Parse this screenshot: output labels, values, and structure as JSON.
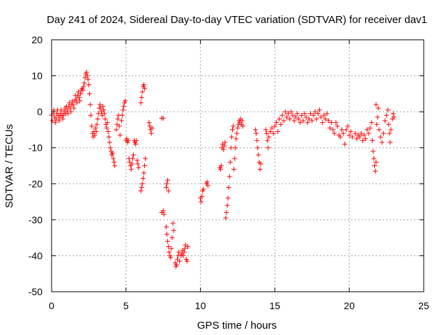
{
  "chart_data": {
    "type": "scatter",
    "title": "Day 241 of 2024, Sidereal Day-to-day VTEC variation (SDTVAR) for receiver dav1",
    "xlabel": "GPS time / hours",
    "ylabel": "SDTVAR / TECUs",
    "xlim": [
      0,
      25
    ],
    "ylim": [
      -50,
      20
    ],
    "xticks": [
      "0",
      "5",
      "10",
      "15",
      "20",
      "25"
    ],
    "yticks": [
      "20",
      "10",
      "0",
      "-10",
      "-20",
      "-30",
      "-40",
      "-50"
    ],
    "grid": true,
    "marker": "plus",
    "color": "#ff0000",
    "series": [
      {
        "name": "dav1",
        "points": [
          [
            0.0,
            -1.0
          ],
          [
            0.05,
            -2.5
          ],
          [
            0.1,
            -0.5
          ],
          [
            0.15,
            0.5
          ],
          [
            0.2,
            -1.5
          ],
          [
            0.25,
            -3.0
          ],
          [
            0.3,
            -2.0
          ],
          [
            0.35,
            -0.5
          ],
          [
            0.4,
            0.5
          ],
          [
            0.45,
            -1.0
          ],
          [
            0.5,
            -2.5
          ],
          [
            0.55,
            -1.5
          ],
          [
            0.6,
            -0.5
          ],
          [
            0.65,
            0.5
          ],
          [
            0.7,
            -1.0
          ],
          [
            0.75,
            -2.0
          ],
          [
            0.8,
            -1.0
          ],
          [
            0.85,
            0.0
          ],
          [
            0.9,
            1.0
          ],
          [
            0.95,
            -0.5
          ],
          [
            1.0,
            1.5
          ],
          [
            1.05,
            0.5
          ],
          [
            1.1,
            -0.5
          ],
          [
            1.15,
            1.5
          ],
          [
            1.2,
            2.5
          ],
          [
            1.25,
            1.0
          ],
          [
            1.3,
            0.0
          ],
          [
            1.35,
            2.0
          ],
          [
            1.4,
            3.0
          ],
          [
            1.45,
            2.0
          ],
          [
            1.5,
            1.0
          ],
          [
            1.55,
            3.0
          ],
          [
            1.6,
            4.5
          ],
          [
            1.65,
            3.5
          ],
          [
            1.7,
            2.5
          ],
          [
            1.75,
            4.5
          ],
          [
            1.8,
            5.5
          ],
          [
            1.85,
            4.0
          ],
          [
            1.9,
            3.0
          ],
          [
            1.95,
            5.0
          ],
          [
            2.0,
            6.0
          ],
          [
            2.05,
            6.5
          ],
          [
            2.1,
            6.0
          ],
          [
            2.15,
            7.0
          ],
          [
            2.2,
            8.0
          ],
          [
            2.25,
            9.5
          ],
          [
            2.3,
            10.5
          ],
          [
            2.35,
            11.0
          ],
          [
            2.4,
            10.0
          ],
          [
            2.45,
            9.0
          ],
          [
            2.5,
            7.5
          ],
          [
            2.55,
            5.0
          ],
          [
            2.6,
            2.0
          ],
          [
            2.65,
            -1.0
          ],
          [
            2.7,
            -4.0
          ],
          [
            2.75,
            -6.0
          ],
          [
            2.8,
            -7.0
          ],
          [
            2.85,
            -5.5
          ],
          [
            2.9,
            -6.5
          ],
          [
            2.95,
            -4.5
          ],
          [
            3.0,
            -5.5
          ],
          [
            3.05,
            -3.5
          ],
          [
            3.1,
            -2.0
          ],
          [
            3.15,
            -0.5
          ],
          [
            3.2,
            1.0
          ],
          [
            3.25,
            2.0
          ],
          [
            3.3,
            1.0
          ],
          [
            3.35,
            0.0
          ],
          [
            3.4,
            -1.0
          ],
          [
            3.45,
            1.5
          ],
          [
            3.5,
            0.5
          ],
          [
            3.55,
            -0.5
          ],
          [
            3.6,
            -2.0
          ],
          [
            3.65,
            -3.5
          ],
          [
            3.7,
            -4.5
          ],
          [
            3.75,
            -3.0
          ],
          [
            3.8,
            -5.5
          ],
          [
            3.85,
            -7.0
          ],
          [
            3.9,
            -8.5
          ],
          [
            3.95,
            -10.0
          ],
          [
            4.0,
            -11.0
          ],
          [
            4.05,
            -12.0
          ],
          [
            4.1,
            -11.5
          ],
          [
            4.15,
            -13.0
          ],
          [
            4.2,
            -14.0
          ],
          [
            4.25,
            -15.0
          ],
          [
            4.35,
            -5.0
          ],
          [
            4.4,
            -3.5
          ],
          [
            4.45,
            -2.0
          ],
          [
            4.5,
            -1.0
          ],
          [
            4.55,
            -4.0
          ],
          [
            4.6,
            -6.5
          ],
          [
            4.7,
            -2.5
          ],
          [
            4.75,
            -1.0
          ],
          [
            4.8,
            0.5
          ],
          [
            4.85,
            1.5
          ],
          [
            4.9,
            2.5
          ],
          [
            4.95,
            3.0
          ],
          [
            5.0,
            -8.0
          ],
          [
            5.05,
            -7.5
          ],
          [
            5.1,
            -8.5
          ],
          [
            5.15,
            -8.0
          ],
          [
            5.2,
            -13.0
          ],
          [
            5.25,
            -14.0
          ],
          [
            5.3,
            -15.0
          ],
          [
            5.35,
            -16.0
          ],
          [
            5.4,
            -14.5
          ],
          [
            5.45,
            -13.0
          ],
          [
            5.5,
            -12.0
          ],
          [
            5.55,
            -8.0
          ],
          [
            5.6,
            -8.5
          ],
          [
            5.65,
            -9.0
          ],
          [
            5.7,
            -8.0
          ],
          [
            5.75,
            -13.5
          ],
          [
            5.8,
            -14.5
          ],
          [
            5.85,
            -15.5
          ],
          [
            6.0,
            2.5
          ],
          [
            6.05,
            4.0
          ],
          [
            6.1,
            5.5
          ],
          [
            6.15,
            7.0
          ],
          [
            6.2,
            7.5
          ],
          [
            6.25,
            6.5
          ],
          [
            6.0,
            -22.0
          ],
          [
            6.05,
            -21.0
          ],
          [
            6.1,
            -20.0
          ],
          [
            6.15,
            -18.5
          ],
          [
            6.2,
            -17.0
          ],
          [
            6.25,
            -15.0
          ],
          [
            6.3,
            -13.0
          ],
          [
            6.55,
            -3.0
          ],
          [
            6.6,
            -4.0
          ],
          [
            6.65,
            -5.0
          ],
          [
            6.7,
            -6.0
          ],
          [
            6.75,
            -4.5
          ],
          [
            7.4,
            -1.8
          ],
          [
            7.5,
            -1.8
          ],
          [
            7.4,
            -28.0
          ],
          [
            7.5,
            -27.5
          ],
          [
            7.55,
            -28.5
          ],
          [
            7.7,
            -21.0
          ],
          [
            7.75,
            -20.0
          ],
          [
            7.8,
            -19.0
          ],
          [
            7.85,
            -22.0
          ],
          [
            7.7,
            -32.0
          ],
          [
            7.75,
            -34.0
          ],
          [
            7.8,
            -36.0
          ],
          [
            7.85,
            -37.5
          ],
          [
            7.9,
            -39.0
          ],
          [
            7.95,
            -40.0
          ],
          [
            8.0,
            -40.5
          ],
          [
            8.05,
            -38.0
          ],
          [
            8.1,
            -35.0
          ],
          [
            8.15,
            -31.0
          ],
          [
            8.2,
            -33.0
          ],
          [
            8.3,
            -42.0
          ],
          [
            8.35,
            -43.0
          ],
          [
            8.4,
            -42.5
          ],
          [
            8.45,
            -41.0
          ],
          [
            8.5,
            -40.0
          ],
          [
            8.55,
            -39.0
          ],
          [
            8.6,
            -41.5
          ],
          [
            8.7,
            -40.0
          ],
          [
            8.75,
            -39.5
          ],
          [
            8.8,
            -38.5
          ],
          [
            8.85,
            -40.0
          ],
          [
            8.9,
            -39.0
          ],
          [
            8.95,
            -38.0
          ],
          [
            9.0,
            -37.0
          ],
          [
            9.05,
            -41.0
          ],
          [
            9.1,
            -41.5
          ],
          [
            9.15,
            -37.5
          ],
          [
            10.0,
            -24.0
          ],
          [
            10.05,
            -25.0
          ],
          [
            10.1,
            -23.5
          ],
          [
            10.15,
            -22.0
          ],
          [
            10.2,
            -21.5
          ],
          [
            10.4,
            -20.0
          ],
          [
            10.45,
            -19.5
          ],
          [
            10.5,
            -20.5
          ],
          [
            11.3,
            -15.5
          ],
          [
            11.35,
            -16.0
          ],
          [
            11.4,
            -15.0
          ],
          [
            11.45,
            -10.0
          ],
          [
            11.5,
            -9.0
          ],
          [
            11.55,
            -10.5
          ],
          [
            11.6,
            -9.5
          ],
          [
            11.65,
            -8.5
          ],
          [
            11.7,
            -29.5
          ],
          [
            11.75,
            -28.0
          ],
          [
            11.8,
            -26.0
          ],
          [
            11.85,
            -24.0
          ],
          [
            11.9,
            -21.0
          ],
          [
            11.95,
            -18.0
          ],
          [
            12.0,
            -14.0
          ],
          [
            12.05,
            -10.0
          ],
          [
            12.1,
            -7.0
          ],
          [
            12.15,
            -5.0
          ],
          [
            12.2,
            -4.0
          ],
          [
            12.25,
            -16.0
          ],
          [
            12.3,
            -13.0
          ],
          [
            12.35,
            -10.0
          ],
          [
            12.4,
            -7.5
          ],
          [
            12.45,
            -6.0
          ],
          [
            12.5,
            -4.5
          ],
          [
            12.55,
            -3.5
          ],
          [
            12.6,
            -2.5
          ],
          [
            12.65,
            -3.0
          ],
          [
            12.7,
            -2.0
          ],
          [
            12.75,
            -3.5
          ],
          [
            12.8,
            -2.5
          ],
          [
            12.85,
            -4.0
          ],
          [
            13.7,
            -5.0
          ],
          [
            13.75,
            -6.0
          ],
          [
            13.8,
            -8.0
          ],
          [
            13.85,
            -10.0
          ],
          [
            13.9,
            -12.0
          ],
          [
            13.95,
            -14.0
          ],
          [
            14.0,
            -16.0
          ],
          [
            14.05,
            -14.5
          ],
          [
            14.4,
            -5.0
          ],
          [
            14.45,
            -6.0
          ],
          [
            14.5,
            -8.0
          ],
          [
            14.55,
            -10.0
          ],
          [
            14.6,
            -7.0
          ],
          [
            14.7,
            -5.5
          ],
          [
            14.8,
            -4.5
          ],
          [
            14.9,
            -6.0
          ],
          [
            15.0,
            -4.0
          ],
          [
            15.1,
            -3.0
          ],
          [
            15.2,
            -5.5
          ],
          [
            15.3,
            -2.0
          ],
          [
            15.4,
            -3.5
          ],
          [
            15.5,
            -1.0
          ],
          [
            15.6,
            -2.5
          ],
          [
            15.7,
            0.0
          ],
          [
            15.8,
            -1.5
          ],
          [
            15.9,
            -0.5
          ],
          [
            16.0,
            -2.0
          ],
          [
            16.1,
            0.0
          ],
          [
            16.2,
            -1.0
          ],
          [
            16.3,
            -2.5
          ],
          [
            16.4,
            -1.5
          ],
          [
            16.5,
            -0.5
          ],
          [
            16.6,
            -2.0
          ],
          [
            16.7,
            -3.0
          ],
          [
            16.8,
            -1.0
          ],
          [
            16.9,
            -2.5
          ],
          [
            17.0,
            -0.5
          ],
          [
            17.1,
            -1.5
          ],
          [
            17.2,
            -3.0
          ],
          [
            17.3,
            -2.0
          ],
          [
            17.4,
            -0.5
          ],
          [
            17.5,
            -2.5
          ],
          [
            17.6,
            -1.0
          ],
          [
            17.7,
            0.0
          ],
          [
            17.8,
            -2.0
          ],
          [
            17.9,
            -0.5
          ],
          [
            18.0,
            0.5
          ],
          [
            18.1,
            -1.5
          ],
          [
            18.2,
            -3.0
          ],
          [
            18.3,
            -1.0
          ],
          [
            18.4,
            -2.0
          ],
          [
            18.5,
            -0.5
          ],
          [
            18.6,
            -2.5
          ],
          [
            18.7,
            -4.5
          ],
          [
            18.8,
            -3.0
          ],
          [
            18.9,
            -5.0
          ],
          [
            19.0,
            -6.0
          ],
          [
            19.1,
            -3.0
          ],
          [
            19.2,
            -4.0
          ],
          [
            19.3,
            -6.5
          ],
          [
            19.4,
            -7.0
          ],
          [
            19.5,
            -5.0
          ],
          [
            19.6,
            -6.0
          ],
          [
            19.7,
            -9.0
          ],
          [
            19.8,
            -5.0
          ],
          [
            19.9,
            -4.0
          ],
          [
            20.0,
            -6.5
          ],
          [
            20.1,
            -5.5
          ],
          [
            20.2,
            -7.0
          ],
          [
            20.4,
            -6.0
          ],
          [
            20.5,
            -7.5
          ],
          [
            20.6,
            -6.5
          ],
          [
            20.7,
            -7.0
          ],
          [
            20.8,
            -6.0
          ],
          [
            20.9,
            -8.0
          ],
          [
            21.0,
            -6.5
          ],
          [
            21.1,
            -7.5
          ],
          [
            21.2,
            -5.0
          ],
          [
            21.3,
            -6.0
          ],
          [
            21.4,
            -4.5
          ],
          [
            21.5,
            -3.0
          ],
          [
            21.55,
            -8.0
          ],
          [
            21.6,
            -11.0
          ],
          [
            21.65,
            -13.0
          ],
          [
            21.7,
            -15.0
          ],
          [
            21.75,
            -16.5
          ],
          [
            21.8,
            -14.0
          ],
          [
            21.85,
            -3.5
          ],
          [
            21.9,
            -1.5
          ],
          [
            21.95,
            1.0
          ],
          [
            21.8,
            2.0
          ],
          [
            22.0,
            -5.0
          ],
          [
            22.1,
            -7.0
          ],
          [
            22.2,
            -8.5
          ],
          [
            22.3,
            -6.0
          ],
          [
            22.4,
            -2.5
          ],
          [
            22.5,
            -1.0
          ],
          [
            22.6,
            0.5
          ],
          [
            22.65,
            -3.5
          ],
          [
            22.7,
            -6.0
          ],
          [
            22.75,
            -8.5
          ],
          [
            22.8,
            -5.0
          ],
          [
            22.9,
            -2.0
          ],
          [
            23.0,
            -1.5
          ],
          [
            22.95,
            -0.5
          ]
        ]
      }
    ]
  }
}
